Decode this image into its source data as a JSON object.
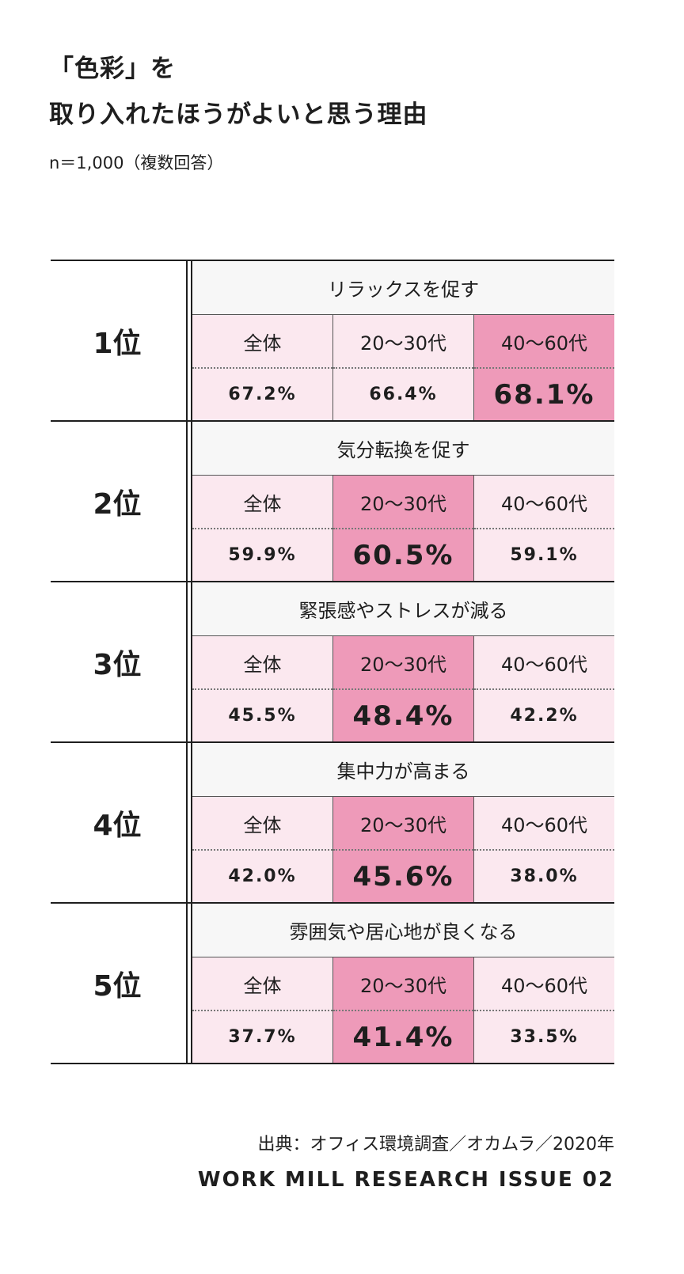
{
  "title_line1": "「色彩」を",
  "title_line2": "取り入れたほうがよいと思う理由",
  "note": "n＝1,000（複数回答）",
  "source": "出典：オフィス環境調査／オカムラ／2020年",
  "footer": "WORK MILL RESEARCH ISSUE 02",
  "colors": {
    "highlight": "#ee9ab9",
    "base": "#fbe8ef",
    "header": "#f7f7f7"
  },
  "chart_data": {
    "type": "table",
    "columns": [
      "全体",
      "20〜30代",
      "40〜60代"
    ],
    "rows": [
      {
        "rank": "1位",
        "reason": "リラックスを促す",
        "labels": [
          "全体",
          "20〜30代",
          "40〜60代"
        ],
        "values": [
          "67.2%",
          "66.4%",
          "68.1%"
        ],
        "highlight": 2
      },
      {
        "rank": "2位",
        "reason": "気分転換を促す",
        "labels": [
          "全体",
          "20〜30代",
          "40〜60代"
        ],
        "values": [
          "59.9%",
          "60.5%",
          "59.1%"
        ],
        "highlight": 1
      },
      {
        "rank": "3位",
        "reason": "緊張感やストレスが減る",
        "labels": [
          "全体",
          "20〜30代",
          "40〜60代"
        ],
        "values": [
          "45.5%",
          "48.4%",
          "42.2%"
        ],
        "highlight": 1
      },
      {
        "rank": "4位",
        "reason": "集中力が高まる",
        "labels": [
          "全体",
          "20〜30代",
          "40〜60代"
        ],
        "values": [
          "42.0%",
          "45.6%",
          "38.0%"
        ],
        "highlight": 1
      },
      {
        "rank": "5位",
        "reason": "雰囲気や居心地が良くなる",
        "labels": [
          "全体",
          "20〜30代",
          "40〜60代"
        ],
        "values": [
          "37.7%",
          "41.4%",
          "33.5%"
        ],
        "highlight": 1
      }
    ]
  }
}
